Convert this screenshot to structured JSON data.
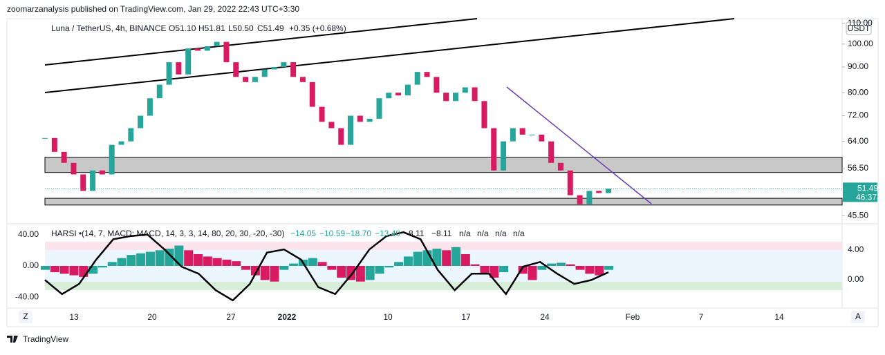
{
  "header": {
    "publisher": "zoomarzanalysis published on TradingView.com, Jan 29, 2022 22:43 UTC+3:30"
  },
  "price_chart": {
    "symbol": "Luna / TetherUS, 4h, BINANCE",
    "open": "O51.10",
    "high": "H51.81",
    "low": "L50.50",
    "close": "C51.49",
    "change": "+0.35 (+0.68%)",
    "currency": "USDT",
    "log_scale": true,
    "ylim": [
      44,
      112
    ],
    "yticks": [
      {
        "value": 110,
        "label": "110.00"
      },
      {
        "value": 100,
        "label": "100.00"
      },
      {
        "value": 90,
        "label": "90.00"
      },
      {
        "value": 80,
        "label": "80.00"
      },
      {
        "value": 72,
        "label": "72.00"
      },
      {
        "value": 64,
        "label": "64.00"
      },
      {
        "value": 56.5,
        "label": "56.50"
      },
      {
        "value": 45.5,
        "label": "45.50"
      }
    ],
    "last_price": {
      "value": 51.49,
      "label": "51.49",
      "countdown": "46:37"
    },
    "zones": [
      [
        55.5,
        59.5
      ],
      [
        47.8,
        49.3
      ]
    ],
    "up_color": "#26a69a",
    "down_color": "#d81b60",
    "closes": [
      65,
      61,
      58,
      55,
      51,
      56,
      55,
      63,
      64,
      68,
      72,
      78,
      83,
      92,
      87,
      98,
      97,
      99,
      101,
      92,
      86,
      84,
      86,
      89,
      90,
      92,
      86,
      84,
      75,
      70,
      68,
      63,
      72,
      70,
      71,
      78,
      80,
      79,
      83,
      88,
      86,
      80,
      77,
      80,
      82,
      77,
      68,
      56,
      64,
      68,
      66,
      66,
      64,
      58,
      56,
      50,
      48,
      51,
      50.5,
      51.49
    ]
  },
  "indicator": {
    "name": "HARSI •",
    "params": "(14, 7, MACD: MACD, 14, 3, 3, 14, 80, 20, 30, -20, -30)",
    "readouts": [
      "−14.05",
      "−10.59",
      "−18.70",
      "−13.40",
      "−8.11",
      "−8.11",
      "n/a",
      "n/a",
      "n/a",
      "n/a"
    ],
    "ylim": [
      -52,
      52
    ],
    "yticks": [
      {
        "value": 40,
        "label": "40.00"
      },
      {
        "value": 0,
        "label": "0.00"
      },
      {
        "value": -40,
        "label": "-40.00"
      }
    ],
    "right_ticks": [
      "4.00",
      "0.00"
    ],
    "rising_color": "#26a69a",
    "falling_color": "#d81b60",
    "histogram": [
      -5,
      -8,
      -10,
      -12,
      -14,
      -10,
      -2,
      5,
      10,
      14,
      16,
      18,
      20,
      22,
      26,
      20,
      15,
      12,
      10,
      8,
      6,
      -5,
      -12,
      -18,
      -20,
      -5,
      3,
      8,
      10,
      5,
      -5,
      -15,
      -18,
      -20,
      -18,
      -10,
      -2,
      5,
      12,
      18,
      20,
      22,
      20,
      24,
      15,
      2,
      -10,
      -15,
      -8,
      0,
      -10,
      -18,
      -5,
      3,
      4,
      2,
      -5,
      -10,
      -12,
      -5
    ],
    "line": [
      -18,
      -36,
      -23,
      8,
      34,
      38,
      40,
      21,
      -1,
      -10,
      -31,
      -44,
      -23,
      17,
      21,
      8,
      -27,
      -36,
      -10,
      21,
      38,
      43,
      34,
      -5,
      -31,
      -10,
      -10,
      -36,
      -1,
      5,
      -10,
      -23,
      -18,
      -8
    ]
  },
  "time_axis": [
    "13",
    "20",
    "27",
    "2022",
    "10",
    "17",
    "24",
    "Feb",
    "7",
    "14"
  ],
  "buttons": {
    "left": "Z",
    "right": "A"
  },
  "footer": {
    "brand": "TradingView"
  }
}
